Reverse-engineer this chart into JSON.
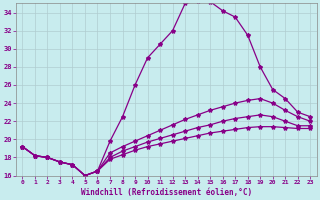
{
  "xlabel": "Windchill (Refroidissement éolien,°C)",
  "background_color": "#c8ecee",
  "grid_color": "#b0cdd0",
  "line_color": "#880088",
  "xlim": [
    -0.5,
    23.5
  ],
  "ylim": [
    16,
    35
  ],
  "yticks": [
    16,
    18,
    20,
    22,
    24,
    26,
    28,
    30,
    32,
    34
  ],
  "xticks": [
    0,
    1,
    2,
    3,
    4,
    5,
    6,
    7,
    8,
    9,
    10,
    11,
    12,
    13,
    14,
    15,
    16,
    17,
    18,
    19,
    20,
    21,
    22,
    23
  ],
  "series": {
    "line1_x": [
      0,
      1,
      2,
      3,
      4,
      5,
      6,
      7,
      8,
      9,
      10,
      11,
      12,
      13,
      14,
      15,
      16,
      17,
      18,
      19,
      20,
      21,
      22,
      23
    ],
    "line1_y": [
      19.2,
      18.2,
      18.0,
      17.5,
      17.2,
      16.0,
      16.5,
      19.8,
      22.5,
      26.0,
      29.0,
      30.5,
      32.0,
      35.0,
      35.3,
      35.2,
      34.2,
      33.5,
      31.5,
      28.0,
      25.5,
      24.5,
      23.0,
      22.5
    ],
    "line2_x": [
      0,
      1,
      2,
      3,
      4,
      5,
      6,
      7,
      8,
      9,
      10,
      11,
      12,
      13,
      14,
      15,
      16,
      17,
      18,
      19,
      20,
      21,
      22,
      23
    ],
    "line2_y": [
      19.2,
      18.2,
      18.0,
      17.5,
      17.2,
      16.0,
      16.5,
      18.5,
      19.2,
      19.8,
      20.4,
      21.0,
      21.6,
      22.2,
      22.7,
      23.2,
      23.6,
      24.0,
      24.3,
      24.5,
      24.0,
      23.2,
      22.5,
      22.0
    ],
    "line3_x": [
      0,
      1,
      2,
      3,
      4,
      5,
      6,
      7,
      8,
      9,
      10,
      11,
      12,
      13,
      14,
      15,
      16,
      17,
      18,
      19,
      20,
      21,
      22,
      23
    ],
    "line3_y": [
      19.2,
      18.2,
      18.0,
      17.5,
      17.2,
      16.0,
      16.5,
      18.0,
      18.7,
      19.2,
      19.7,
      20.1,
      20.5,
      20.9,
      21.3,
      21.6,
      22.0,
      22.3,
      22.5,
      22.7,
      22.5,
      22.0,
      21.5,
      21.5
    ],
    "line4_x": [
      0,
      1,
      2,
      3,
      4,
      5,
      6,
      7,
      8,
      9,
      10,
      11,
      12,
      13,
      14,
      15,
      16,
      17,
      18,
      19,
      20,
      21,
      22,
      23
    ],
    "line4_y": [
      19.2,
      18.2,
      18.0,
      17.5,
      17.2,
      16.0,
      16.5,
      17.8,
      18.3,
      18.8,
      19.2,
      19.5,
      19.8,
      20.1,
      20.4,
      20.7,
      20.9,
      21.1,
      21.3,
      21.4,
      21.4,
      21.3,
      21.2,
      21.2
    ]
  }
}
